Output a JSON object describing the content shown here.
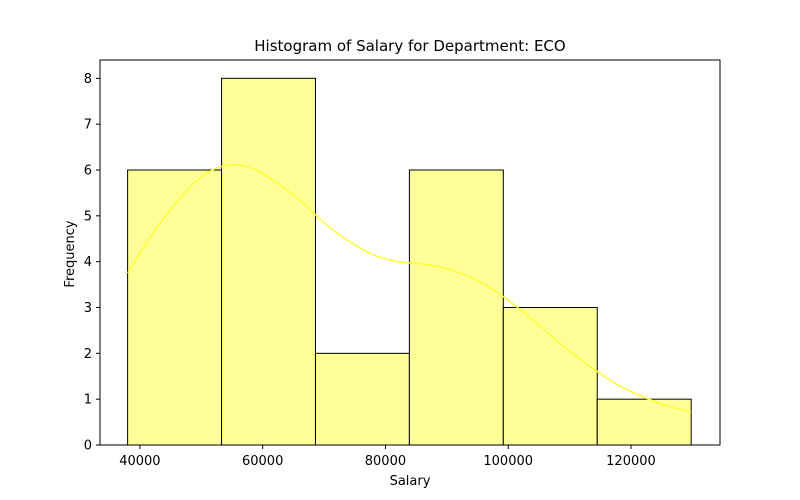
{
  "chart_data": {
    "type": "bar",
    "subtype": "histogram",
    "title": "Histogram of Salary for Department: ECO",
    "xlabel": "Salary",
    "ylabel": "Frequency",
    "bins": [
      {
        "start": 38000,
        "end": 53300,
        "count": 6
      },
      {
        "start": 53300,
        "end": 68600,
        "count": 8
      },
      {
        "start": 68600,
        "end": 83900,
        "count": 2
      },
      {
        "start": 83900,
        "end": 99200,
        "count": 6
      },
      {
        "start": 99200,
        "end": 114500,
        "count": 3
      },
      {
        "start": 114500,
        "end": 129800,
        "count": 1
      }
    ],
    "xlim": [
      33500,
      134500
    ],
    "ylim": [
      0,
      8.4
    ],
    "xticks": [
      40000,
      60000,
      80000,
      100000,
      120000
    ],
    "xtick_labels": [
      "40000",
      "60000",
      "80000",
      "100000",
      "120000"
    ],
    "yticks": [
      0,
      1,
      2,
      3,
      4,
      5,
      6,
      7,
      8
    ],
    "ytick_labels": [
      "0",
      "1",
      "2",
      "3",
      "4",
      "5",
      "6",
      "7",
      "8"
    ],
    "grid": false,
    "bar_fill": "#ffff99",
    "bar_edge": "#000000",
    "kde": {
      "color": "#ffff33",
      "x": [
        38000,
        42000,
        46000,
        50000,
        54000,
        58000,
        62000,
        66000,
        70000,
        74000,
        78000,
        82000,
        86000,
        90000,
        94000,
        98000,
        102000,
        106000,
        110000,
        114000,
        118000,
        122000,
        126000,
        129800
      ],
      "y": [
        3.75,
        4.6,
        5.3,
        5.85,
        6.1,
        6.05,
        5.75,
        5.35,
        4.85,
        4.45,
        4.15,
        4.0,
        3.95,
        3.85,
        3.65,
        3.35,
        2.95,
        2.5,
        2.05,
        1.65,
        1.3,
        1.05,
        0.85,
        0.72
      ]
    }
  }
}
